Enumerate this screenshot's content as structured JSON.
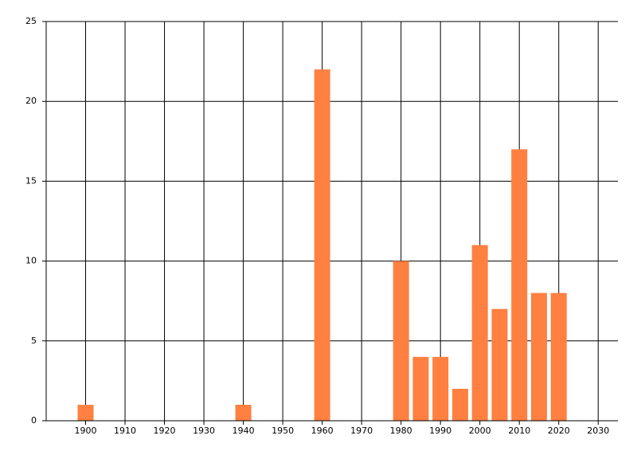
{
  "chart_data": {
    "type": "bar",
    "x": [
      1900,
      1940,
      1960,
      1980,
      1985,
      1990,
      1995,
      2000,
      2005,
      2010,
      2015,
      2020
    ],
    "values": [
      1,
      1,
      22,
      10,
      4,
      4,
      2,
      11,
      7,
      17,
      8,
      8
    ],
    "color": "#ff8040",
    "xlim": [
      1890,
      2035
    ],
    "xticks": [
      1900,
      1910,
      1920,
      1930,
      1940,
      1950,
      1960,
      1970,
      1980,
      1990,
      2000,
      2010,
      2020,
      2030
    ],
    "ylim": [
      0,
      25
    ],
    "yticks": [
      0,
      5,
      10,
      15,
      20,
      25
    ],
    "grid": true
  }
}
